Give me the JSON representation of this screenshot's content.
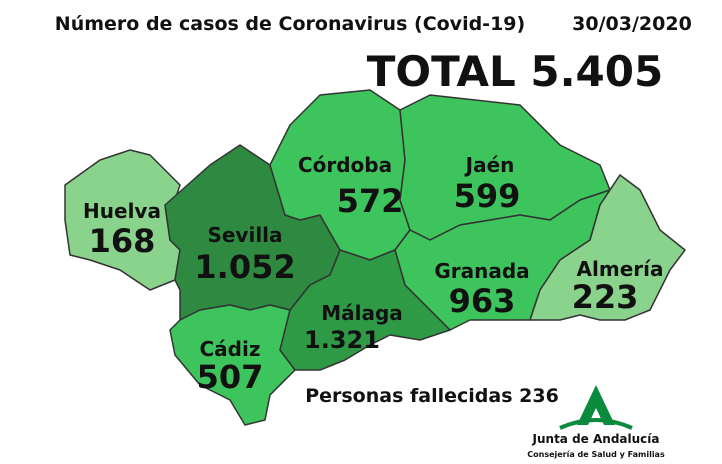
{
  "header": {
    "title": "Número de casos de Coronavirus (Covid-19)",
    "date": "30/03/2020",
    "total": "TOTAL 5.405"
  },
  "provinces": [
    {
      "name": "Huelva",
      "cases": "168"
    },
    {
      "name": "Sevilla",
      "cases": "1.052"
    },
    {
      "name": "Córdoba",
      "cases": "572"
    },
    {
      "name": "Jaén",
      "cases": "599"
    },
    {
      "name": "Granada",
      "cases": "963"
    },
    {
      "name": "Almería",
      "cases": "223"
    },
    {
      "name": "Cádiz",
      "cases": "507"
    },
    {
      "name": "Málaga",
      "cases": "1.321"
    }
  ],
  "footer": {
    "deaths": "Personas fallecidas 236",
    "logo_title": "Junta de Andalucía",
    "logo_subtitle": "Consejería de Salud y Familias"
  }
}
